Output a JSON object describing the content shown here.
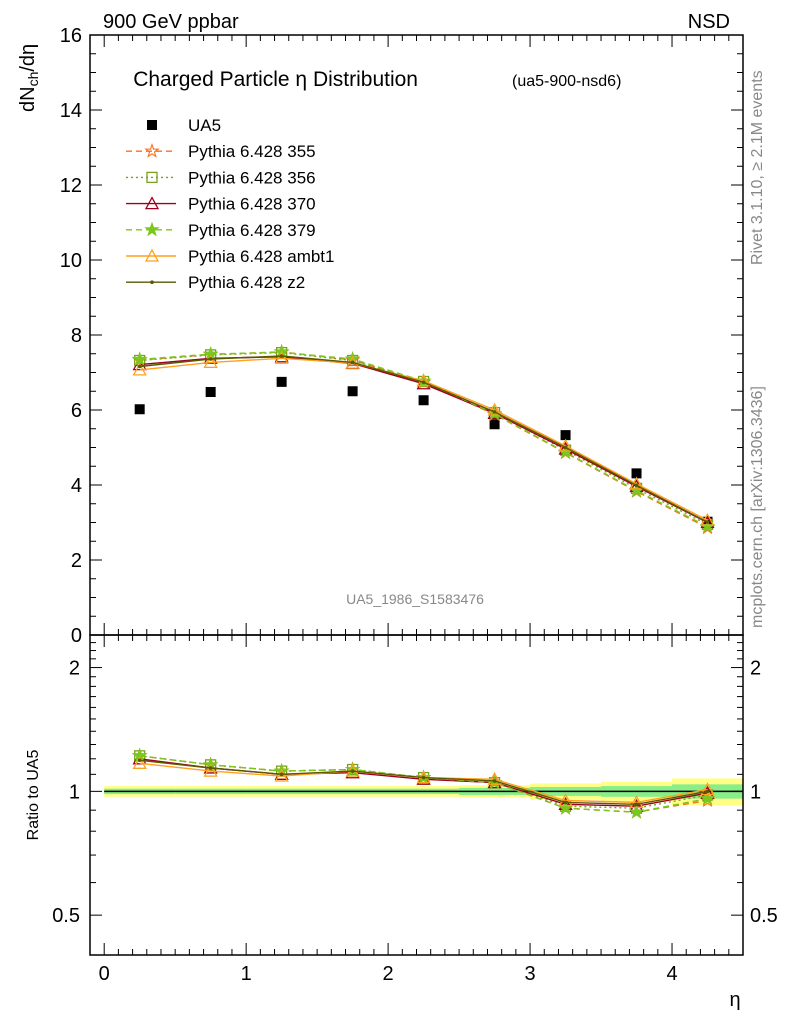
{
  "header": {
    "left": "900 GeV ppbar",
    "right": "NSD"
  },
  "side_text": {
    "rivet": "Rivet 3.1.10, ≥ 2.1M events",
    "mcplots": "mcplots.cern.ch [arXiv:1306.3436]"
  },
  "watermark": "UA5_1986_S1583476",
  "chart_data": [
    {
      "type": "scatter",
      "panel": "main",
      "title": "Charged Particle η Distribution",
      "subtitle": "(ua5-900-nsd6)",
      "xlabel": "η",
      "ylabel": "dNch/dη",
      "ylabel_parts": {
        "main": "dN",
        "sub": "ch",
        "rest": "/dη"
      },
      "xlim": [
        -0.1,
        4.5
      ],
      "ylim": [
        0,
        16
      ],
      "yticks": [
        "0",
        "2",
        "4",
        "6",
        "8",
        "10",
        "12",
        "14",
        "16"
      ],
      "legend_position": "top-left",
      "x": [
        0.25,
        0.75,
        1.25,
        1.75,
        2.25,
        2.75,
        3.25,
        3.75,
        4.25
      ],
      "series": [
        {
          "name": "UA5",
          "color": "#000000",
          "marker": "square",
          "style": "marker-only",
          "values": [
            6.02,
            6.48,
            6.75,
            6.5,
            6.26,
            5.62,
            5.33,
            4.31,
            3.02
          ]
        },
        {
          "name": "Pythia 6.428 355",
          "color": "#ff6e1e",
          "marker": "star",
          "style": "dashed",
          "values": [
            7.33,
            7.48,
            7.55,
            7.33,
            6.74,
            5.88,
            4.86,
            3.83,
            2.86
          ]
        },
        {
          "name": "Pythia 6.428 356",
          "color": "#7aa01e",
          "marker": "open-square",
          "style": "dotted",
          "values": [
            7.32,
            7.47,
            7.53,
            7.32,
            6.76,
            5.93,
            4.93,
            3.91,
            2.95
          ]
        },
        {
          "name": "Pythia 6.428 370",
          "color": "#a0001e",
          "marker": "open-triangle",
          "style": "solid",
          "values": [
            7.21,
            7.38,
            7.42,
            7.24,
            6.7,
            5.91,
            4.96,
            3.96,
            3.0
          ]
        },
        {
          "name": "Pythia 6.428 379",
          "color": "#7ac81e",
          "marker": "star",
          "style": "dashed",
          "values": [
            7.35,
            7.49,
            7.54,
            7.36,
            6.77,
            5.9,
            4.87,
            3.85,
            2.89
          ]
        },
        {
          "name": "Pythia 6.428 ambt1",
          "color": "#ffa01e",
          "marker": "open-triangle",
          "style": "solid",
          "values": [
            7.07,
            7.27,
            7.38,
            7.25,
            6.78,
            6.0,
            5.04,
            4.03,
            3.06
          ]
        },
        {
          "name": "Pythia 6.428 z2",
          "color": "#5a5a00",
          "marker": "dot",
          "style": "solid",
          "values": [
            7.16,
            7.36,
            7.44,
            7.27,
            6.74,
            5.95,
            5.0,
            3.99,
            3.01
          ]
        }
      ]
    },
    {
      "type": "line",
      "panel": "ratio",
      "xlabel": "η",
      "ylabel": "Ratio to UA5",
      "xlim": [
        -0.1,
        4.5
      ],
      "ylim": [
        0.4,
        2.4
      ],
      "yscale": "log",
      "yticks": [
        "0.5",
        "1",
        "2"
      ],
      "xticks": [
        "0",
        "1",
        "2",
        "3",
        "4"
      ],
      "x": [
        0.25,
        0.75,
        1.25,
        1.75,
        2.25,
        2.75,
        3.25,
        3.75,
        4.25
      ],
      "reference_bands": {
        "stat": [
          [
            0.985,
            1.015
          ],
          [
            0.985,
            1.015
          ],
          [
            0.985,
            1.015
          ],
          [
            0.985,
            1.015
          ],
          [
            0.985,
            1.015
          ],
          [
            0.98,
            1.02
          ],
          [
            0.975,
            1.025
          ],
          [
            0.97,
            1.03
          ],
          [
            0.96,
            1.04
          ]
        ],
        "syst": [
          [
            0.97,
            1.03
          ],
          [
            0.97,
            1.03
          ],
          [
            0.97,
            1.03
          ],
          [
            0.97,
            1.03
          ],
          [
            0.97,
            1.03
          ],
          [
            0.965,
            1.035
          ],
          [
            0.955,
            1.045
          ],
          [
            0.945,
            1.055
          ],
          [
            0.925,
            1.075
          ]
        ]
      },
      "series": [
        {
          "name": "Pythia 6.428 355",
          "values": [
            1.22,
            1.16,
            1.12,
            1.13,
            1.08,
            1.05,
            0.91,
            0.89,
            0.95
          ]
        },
        {
          "name": "Pythia 6.428 356",
          "values": [
            1.22,
            1.16,
            1.12,
            1.13,
            1.08,
            1.05,
            0.92,
            0.91,
            0.98
          ]
        },
        {
          "name": "Pythia 6.428 370",
          "values": [
            1.2,
            1.14,
            1.1,
            1.11,
            1.07,
            1.05,
            0.93,
            0.92,
            0.99
          ]
        },
        {
          "name": "Pythia 6.428 379",
          "values": [
            1.22,
            1.16,
            1.12,
            1.13,
            1.08,
            1.05,
            0.91,
            0.89,
            0.96
          ]
        },
        {
          "name": "Pythia 6.428 ambt1",
          "values": [
            1.17,
            1.12,
            1.09,
            1.12,
            1.08,
            1.07,
            0.95,
            0.94,
            1.01
          ]
        },
        {
          "name": "Pythia 6.428 z2",
          "values": [
            1.19,
            1.14,
            1.1,
            1.12,
            1.08,
            1.06,
            0.94,
            0.93,
            1.0
          ]
        }
      ]
    }
  ]
}
